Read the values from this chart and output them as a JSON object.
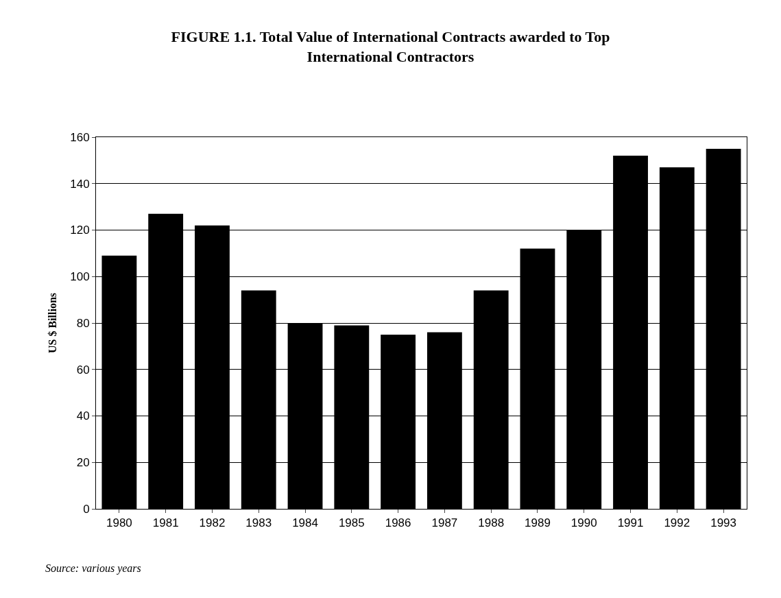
{
  "chart_data": {
    "type": "bar",
    "title": "FIGURE 1.1. Total Value of International Contracts awarded to Top\nInternational Contractors",
    "ylabel": "US $ Billions",
    "categories": [
      "1980",
      "1981",
      "1982",
      "1983",
      "1984",
      "1985",
      "1986",
      "1987",
      "1988",
      "1989",
      "1990",
      "1991",
      "1992",
      "1993"
    ],
    "values": [
      109,
      127,
      122,
      94,
      80,
      79,
      75,
      76,
      94,
      112,
      120,
      152,
      147,
      155
    ],
    "color": "#000000",
    "ylim": [
      0,
      160
    ],
    "yticks": [
      0,
      20,
      40,
      60,
      80,
      100,
      120,
      140,
      160
    ],
    "grid": "y",
    "annotations": [
      "Source: various years"
    ]
  }
}
